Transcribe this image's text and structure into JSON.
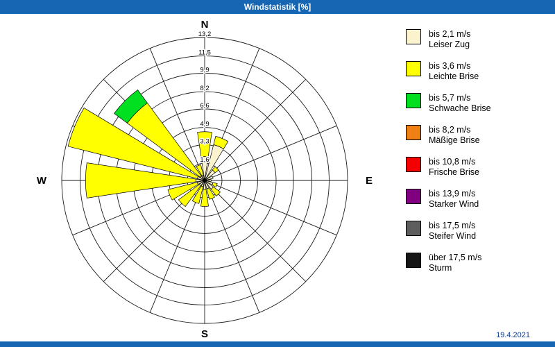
{
  "titlebar": {
    "title": "Windstatistik [%]"
  },
  "footer": {
    "date": "19.4.2021"
  },
  "compass": {
    "n": "N",
    "e": "E",
    "s": "S",
    "w": "W"
  },
  "colors": {
    "titlebar": "#1766b3",
    "grid": "#1a1a1a",
    "date_text": "#0d3b8c"
  },
  "legend": [
    {
      "color": "#FAF3CD",
      "range": "bis 2,1 m/s",
      "name": "Leiser Zug"
    },
    {
      "color": "#FFFF00",
      "range": "bis 3,6 m/s",
      "name": "Leichte Brise"
    },
    {
      "color": "#00DF20",
      "range": "bis 5,7 m/s",
      "name": "Schwache Brise"
    },
    {
      "color": "#EF8013",
      "range": "bis 8,2 m/s",
      "name": "Mäßige Brise"
    },
    {
      "color": "#F40000",
      "range": "bis 10,8 m/s",
      "name": "Frische Brise"
    },
    {
      "color": "#800080",
      "range": "bis 13,9 m/s",
      "name": "Starker Wind"
    },
    {
      "color": "#5E5E5E",
      "range": "bis 17,5 m/s",
      "name": "Steifer Wind"
    },
    {
      "color": "#161616",
      "range": "über 17,5 m/s",
      "name": "Sturm"
    }
  ],
  "chart_data": {
    "type": "bar",
    "subtype": "windrose",
    "polar": true,
    "title": "Windstatistik [%]",
    "units": "percent",
    "axis_max": 13.2,
    "rings": [
      1.6,
      3.3,
      4.9,
      6.6,
      8.2,
      9.9,
      11.5,
      13.2
    ],
    "ring_labels": [
      "1,6",
      "3,3",
      "4,9",
      "6,6",
      "8,2",
      "9,9",
      "11,5",
      "13,2"
    ],
    "directions": [
      "N",
      "NNE",
      "NE",
      "ENE",
      "E",
      "ESE",
      "SE",
      "SSE",
      "S",
      "SSW",
      "SW",
      "WSW",
      "W",
      "WNW",
      "NW",
      "NNW"
    ],
    "series": [
      {
        "name": "bis 2,1 m/s",
        "color": "#FAF3CD",
        "values": [
          2.2,
          3.4,
          1.2,
          0.8,
          0.6,
          0.8,
          1.0,
          0.8,
          0.8,
          0.6,
          0.6,
          0.7,
          0.8,
          0.7,
          0.5,
          0.5
        ]
      },
      {
        "name": "bis 3,6 m/s",
        "color": "#FFFF00",
        "values": [
          2.3,
          0.8,
          0.4,
          0.0,
          0.0,
          0.4,
          0.8,
          1.0,
          1.6,
          1.6,
          2.4,
          2.8,
          10.2,
          12.3,
          8.4,
          1.0
        ]
      },
      {
        "name": "bis 5,7 m/s",
        "color": "#00DF20",
        "values": [
          0,
          0,
          0,
          0,
          0,
          0,
          0,
          0,
          0,
          0,
          0,
          0,
          0,
          0,
          1.5,
          0
        ]
      },
      {
        "name": "bis 8,2 m/s",
        "color": "#EF8013",
        "values": [
          0,
          0,
          0,
          0,
          0,
          0,
          0,
          0,
          0,
          0,
          0,
          0,
          0,
          0,
          0,
          0
        ]
      },
      {
        "name": "bis 10,8 m/s",
        "color": "#F40000",
        "values": [
          0,
          0,
          0,
          0,
          0,
          0,
          0,
          0,
          0,
          0,
          0,
          0,
          0,
          0,
          0,
          0
        ]
      },
      {
        "name": "bis 13,9 m/s",
        "color": "#800080",
        "values": [
          0,
          0,
          0,
          0,
          0,
          0,
          0,
          0,
          0,
          0,
          0,
          0,
          0,
          0,
          0,
          0
        ]
      },
      {
        "name": "bis 17,5 m/s",
        "color": "#5E5E5E",
        "values": [
          0,
          0,
          0,
          0,
          0,
          0,
          0,
          0,
          0,
          0,
          0,
          0,
          0,
          0,
          0,
          0
        ]
      },
      {
        "name": "über 17,5 m/s",
        "color": "#161616",
        "values": [
          0,
          0,
          0,
          0,
          0,
          0,
          0,
          0,
          0,
          0,
          0,
          0,
          0,
          0,
          0,
          0
        ]
      }
    ],
    "legend_position": "right",
    "grid": true
  }
}
